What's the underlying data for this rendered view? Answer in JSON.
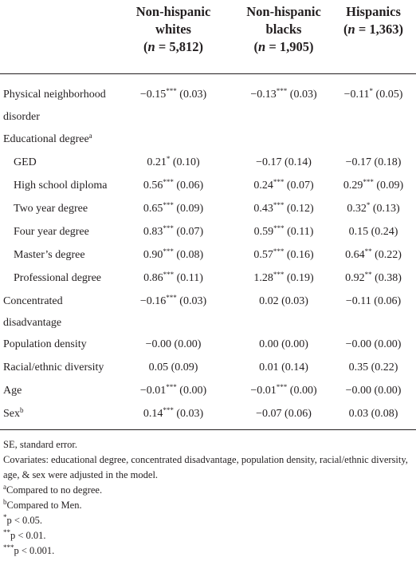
{
  "columns": [
    {
      "name_line1": "Non-hispanic",
      "name_line2": "whites",
      "n_label": "n",
      "n_value": "5,812"
    },
    {
      "name_line1": "Non-hispanic",
      "name_line2": "blacks",
      "n_label": "n",
      "n_value": "1,905"
    },
    {
      "name_line1": "Hispanics",
      "name_line2": "",
      "n_label": "n",
      "n_value": "1,363"
    }
  ],
  "rows": [
    {
      "label": "Physical neighborhood",
      "label2": "disorder",
      "indent": false,
      "sup": "",
      "c1": "−0.15",
      "c1s": "***",
      "c1e": " (0.03)",
      "c2": "−0.13",
      "c2s": "***",
      "c2e": " (0.03)",
      "c3": "−0.11",
      "c3s": "*",
      "c3e": " (0.05)"
    },
    {
      "label": "Educational degree",
      "label2": "",
      "indent": false,
      "sup": "a",
      "c1": "",
      "c1s": "",
      "c1e": "",
      "c2": "",
      "c2s": "",
      "c2e": "",
      "c3": "",
      "c3s": "",
      "c3e": ""
    },
    {
      "label": "GED",
      "label2": "",
      "indent": true,
      "sup": "",
      "c1": "0.21",
      "c1s": "*",
      "c1e": " (0.10)",
      "c2": "−0.17",
      "c2s": "",
      "c2e": " (0.14)",
      "c3": "−0.17",
      "c3s": "",
      "c3e": " (0.18)"
    },
    {
      "label": "High school diploma",
      "label2": "",
      "indent": true,
      "sup": "",
      "c1": "0.56",
      "c1s": "***",
      "c1e": " (0.06)",
      "c2": "0.24",
      "c2s": "***",
      "c2e": " (0.07)",
      "c3": "0.29",
      "c3s": "***",
      "c3e": " (0.09)"
    },
    {
      "label": "Two year degree",
      "label2": "",
      "indent": true,
      "sup": "",
      "c1": "0.65",
      "c1s": "***",
      "c1e": " (0.09)",
      "c2": "0.43",
      "c2s": "***",
      "c2e": " (0.12)",
      "c3": "0.32",
      "c3s": "*",
      "c3e": " (0.13)"
    },
    {
      "label": "Four year degree",
      "label2": "",
      "indent": true,
      "sup": "",
      "c1": "0.83",
      "c1s": "***",
      "c1e": " (0.07)",
      "c2": "0.59",
      "c2s": "***",
      "c2e": " (0.11)",
      "c3": "0.15",
      "c3s": "",
      "c3e": " (0.24)"
    },
    {
      "label": "Master’s degree",
      "label2": "",
      "indent": true,
      "sup": "",
      "c1": "0.90",
      "c1s": "***",
      "c1e": " (0.08)",
      "c2": "0.57",
      "c2s": "***",
      "c2e": " (0.16)",
      "c3": "0.64",
      "c3s": "**",
      "c3e": " (0.22)"
    },
    {
      "label": "Professional degree",
      "label2": "",
      "indent": true,
      "sup": "",
      "c1": "0.86",
      "c1s": "***",
      "c1e": " (0.11)",
      "c2": "1.28",
      "c2s": "***",
      "c2e": " (0.19)",
      "c3": "0.92",
      "c3s": "**",
      "c3e": " (0.38)"
    },
    {
      "label": "Concentrated",
      "label2": "disadvantage",
      "indent": false,
      "sup": "",
      "c1": "−0.16",
      "c1s": "***",
      "c1e": " (0.03)",
      "c2": "0.02",
      "c2s": "",
      "c2e": " (0.03)",
      "c3": "−0.11",
      "c3s": "",
      "c3e": " (0.06)"
    },
    {
      "label": "Population density",
      "label2": "",
      "indent": false,
      "sup": "",
      "c1": "−0.00",
      "c1s": "",
      "c1e": " (0.00)",
      "c2": "0.00",
      "c2s": "",
      "c2e": " (0.00)",
      "c3": "−0.00",
      "c3s": "",
      "c3e": " (0.00)"
    },
    {
      "label": "Racial/ethnic diversity",
      "label2": "",
      "indent": false,
      "sup": "",
      "c1": "0.05",
      "c1s": "",
      "c1e": " (0.09)",
      "c2": "0.01",
      "c2s": "",
      "c2e": " (0.14)",
      "c3": "0.35",
      "c3s": "",
      "c3e": " (0.22)"
    },
    {
      "label": "Age",
      "label2": "",
      "indent": false,
      "sup": "",
      "c1": "−0.01",
      "c1s": "***",
      "c1e": " (0.00)",
      "c2": "−0.01",
      "c2s": "***",
      "c2e": " (0.00)",
      "c3": "−0.00",
      "c3s": "",
      "c3e": " (0.00)"
    },
    {
      "label": "Sex",
      "label2": "",
      "indent": false,
      "sup": "b",
      "c1": "0.14",
      "c1s": "***",
      "c1e": " (0.03)",
      "c2": "−0.07",
      "c2s": "",
      "c2e": " (0.06)",
      "c3": "0.03",
      "c3s": "",
      "c3e": " (0.08)"
    }
  ],
  "footnotes": {
    "se": "SE, standard error.",
    "covariates": "Covariates: educational degree, concentrated disadvantage, population density, racial/ethnic diversity, age, & sex were adjusted in the model.",
    "a_mark": "a",
    "a_text": "Compared to no degree.",
    "b_mark": "b",
    "b_text": "Compared to Men.",
    "p1_mark": "*",
    "p1_text": "p < 0.05.",
    "p2_mark": "**",
    "p2_text": "p < 0.01.",
    "p3_mark": "***",
    "p3_text": "p < 0.001."
  }
}
